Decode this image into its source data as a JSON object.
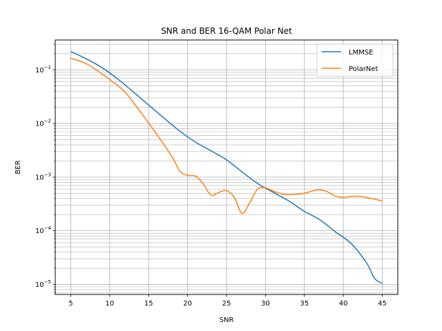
{
  "chart_data": {
    "type": "line",
    "title": "SNR and BER 16-QAM Polar Net",
    "xlabel": "SNR",
    "ylabel": "BER",
    "xlim": [
      3.0,
      47.0
    ],
    "ylim": [
      6.5e-06,
      0.36
    ],
    "yscale": "log",
    "x_ticks": [
      5,
      10,
      15,
      20,
      25,
      30,
      35,
      40,
      45
    ],
    "x_tick_labels": [
      "5",
      "10",
      "15",
      "20",
      "25",
      "30",
      "35",
      "40",
      "45"
    ],
    "y_ticks": [
      1e-05,
      0.0001,
      0.001,
      0.01,
      0.1
    ],
    "y_tick_labels": [
      {
        "base": "10",
        "exp": "−5"
      },
      {
        "base": "10",
        "exp": "−4"
      },
      {
        "base": "10",
        "exp": "−3"
      },
      {
        "base": "10",
        "exp": "−2"
      },
      {
        "base": "10",
        "exp": "−1"
      }
    ],
    "grid": "major and minor",
    "legend_position": "top-right",
    "series": [
      {
        "name": "LMMSE",
        "color": "#1f77b4",
        "x": [
          5,
          7,
          9,
          11,
          13,
          15,
          17,
          19,
          21,
          23,
          25,
          27,
          29,
          31,
          33,
          35,
          37,
          39,
          41,
          43,
          44,
          45
        ],
        "y": [
          0.22,
          0.16,
          0.11,
          0.068,
          0.039,
          0.022,
          0.0125,
          0.0072,
          0.0045,
          0.0031,
          0.0021,
          0.00125,
          0.00076,
          0.00052,
          0.00036,
          0.00023,
          0.00016,
          9.5e-05,
          5.8e-05,
          2.5e-05,
          1.3e-05,
          1.05e-05
        ]
      },
      {
        "name": "PolarNet",
        "color": "#ff7f0e",
        "x": [
          5,
          7,
          9,
          10,
          12,
          14,
          16,
          18,
          19,
          20,
          21,
          22,
          23,
          24,
          25,
          26,
          27,
          28,
          29,
          30,
          31,
          32,
          33,
          34,
          35,
          36,
          37,
          38,
          39,
          40,
          42,
          45
        ],
        "y": [
          0.165,
          0.13,
          0.084,
          0.066,
          0.038,
          0.016,
          0.0064,
          0.0024,
          0.0013,
          0.00108,
          0.00105,
          0.00075,
          0.00046,
          0.00052,
          0.00056,
          0.00042,
          0.00021,
          0.00034,
          0.0006,
          0.00063,
          0.00055,
          0.00049,
          0.00047,
          0.00048,
          0.0005,
          0.00055,
          0.00058,
          0.00053,
          0.00044,
          0.00042,
          0.00044,
          0.00036
        ]
      }
    ]
  }
}
